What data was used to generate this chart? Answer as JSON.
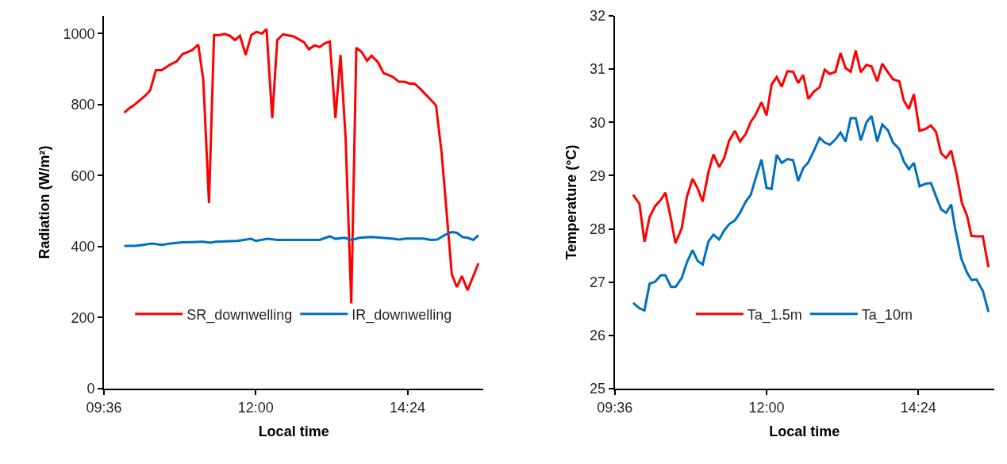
{
  "chart_data": [
    {
      "type": "line",
      "xlabel": "Local time",
      "ylabel": "Radiation (W/m²)",
      "xlim": [
        9.6,
        15.6
      ],
      "xticks": [
        {
          "value": 9.6,
          "label": "09:36"
        },
        {
          "value": 12,
          "label": "12:00"
        },
        {
          "value": 14.4,
          "label": "14:24"
        }
      ],
      "ylim": [
        0,
        1050
      ],
      "yticks": [
        0,
        200,
        400,
        600,
        800,
        1000
      ],
      "legend": "bottom",
      "marker": "none",
      "line_style": "solid",
      "series": [
        {
          "name": "SR_downwelling",
          "color": "#ff0000",
          "x": [
            9.92,
            10.0,
            10.07,
            10.17,
            10.25,
            10.33,
            10.42,
            10.51,
            10.65,
            10.75,
            10.84,
            10.99,
            11.09,
            11.17,
            11.26,
            11.34,
            11.42,
            11.51,
            11.59,
            11.67,
            11.75,
            11.84,
            11.93,
            12.01,
            12.1,
            12.17,
            12.26,
            12.34,
            12.43,
            12.6,
            12.76,
            12.84,
            12.93,
            13.01,
            13.09,
            13.17,
            13.26,
            13.34,
            13.42,
            13.51,
            13.59,
            13.67,
            13.76,
            13.83,
            13.93,
            14.02,
            14.16,
            14.26,
            14.36,
            14.44,
            14.51,
            14.61,
            14.85,
            14.94,
            15.1,
            15.18,
            15.26,
            15.35,
            15.52
          ],
          "values": [
            777,
            790,
            798,
            813,
            825,
            840,
            897,
            897,
            913,
            922,
            942,
            953,
            969,
            870,
            523,
            996,
            996,
            999,
            994,
            982,
            994,
            940,
            996,
            1005,
            1000,
            1013,
            762,
            982,
            998,
            992,
            976,
            956,
            967,
            962,
            973,
            978,
            762,
            940,
            707,
            240,
            960,
            949,
            924,
            938,
            920,
            889,
            879,
            865,
            864,
            859,
            859,
            843,
            798,
            662,
            322,
            286,
            317,
            277,
            353
          ]
        },
        {
          "name": "IR_downwelling",
          "color": "#0070c0",
          "x": [
            9.92,
            10.09,
            10.17,
            10.36,
            10.51,
            10.65,
            10.84,
            11.01,
            11.16,
            11.28,
            11.37,
            11.71,
            11.93,
            12.0,
            12.19,
            12.34,
            13.01,
            13.17,
            13.26,
            13.4,
            13.52,
            13.64,
            13.83,
            13.98,
            14.15,
            14.27,
            14.39,
            14.65,
            14.77,
            14.87,
            15.0,
            15.1,
            15.18,
            15.27,
            15.35,
            15.44,
            15.52
          ],
          "values": [
            402,
            402,
            404,
            409,
            405,
            409,
            412,
            413,
            414,
            411,
            414,
            416,
            422,
            416,
            422,
            419,
            419,
            429,
            422,
            425,
            419,
            425,
            427,
            425,
            423,
            420,
            423,
            423,
            419,
            420,
            434,
            441,
            439,
            427,
            425,
            419,
            432
          ]
        }
      ]
    },
    {
      "type": "line",
      "xlabel": "Local time",
      "ylabel": "Temperature (°C)",
      "xlim": [
        9.6,
        15.6
      ],
      "xticks": [
        {
          "value": 9.6,
          "label": "09:36"
        },
        {
          "value": 12,
          "label": "12:00"
        },
        {
          "value": 14.4,
          "label": "14:24"
        }
      ],
      "ylim": [
        25,
        32
      ],
      "yticks": [
        25,
        26,
        27,
        28,
        29,
        30,
        31,
        32
      ],
      "legend": "bottom",
      "marker": "none",
      "line_style": "solid",
      "series": [
        {
          "name": "Ta_1.5m",
          "color": "#ff0000",
          "x": [
            9.89,
            9.99,
            10.07,
            10.15,
            10.24,
            10.33,
            10.4,
            10.48,
            10.56,
            10.66,
            10.74,
            10.83,
            10.91,
            10.99,
            11.08,
            11.16,
            11.25,
            11.33,
            11.41,
            11.5,
            11.58,
            11.67,
            11.75,
            11.82,
            11.92,
            12.0,
            12.08,
            12.16,
            12.24,
            12.33,
            12.42,
            12.5,
            12.58,
            12.66,
            12.75,
            12.84,
            12.92,
            13.0,
            13.09,
            13.17,
            13.25,
            13.33,
            13.41,
            13.49,
            13.58,
            13.66,
            13.75,
            13.83,
            13.92,
            14.0,
            14.1,
            14.17,
            14.25,
            14.33,
            14.42,
            14.52,
            14.6,
            14.68,
            14.76,
            14.84,
            14.92,
            15.01,
            15.09,
            15.17,
            15.24,
            15.32,
            15.42,
            15.51
          ],
          "values": [
            28.64,
            28.47,
            27.76,
            28.22,
            28.43,
            28.55,
            28.68,
            28.24,
            27.73,
            28.02,
            28.6,
            28.94,
            28.76,
            28.51,
            29.06,
            29.4,
            29.16,
            29.33,
            29.66,
            29.84,
            29.64,
            29.78,
            30.01,
            30.13,
            30.38,
            30.13,
            30.71,
            30.85,
            30.67,
            30.96,
            30.95,
            30.74,
            30.89,
            30.44,
            30.58,
            30.66,
            30.99,
            30.91,
            30.95,
            31.3,
            31.02,
            30.95,
            31.35,
            30.94,
            31.08,
            31.05,
            30.77,
            31.1,
            30.94,
            30.81,
            30.77,
            30.41,
            30.25,
            30.53,
            29.84,
            29.88,
            29.94,
            29.82,
            29.42,
            29.33,
            29.47,
            29.0,
            28.48,
            28.25,
            27.87,
            27.86,
            27.86,
            27.28
          ]
        },
        {
          "name": "Ta_10m",
          "color": "#0070c0",
          "x": [
            9.89,
            9.99,
            10.07,
            10.15,
            10.24,
            10.33,
            10.4,
            10.49,
            10.56,
            10.66,
            10.74,
            10.83,
            10.91,
            10.99,
            11.08,
            11.16,
            11.25,
            11.33,
            11.41,
            11.5,
            11.58,
            11.67,
            11.75,
            11.83,
            11.92,
            12.0,
            12.08,
            12.16,
            12.24,
            12.33,
            12.42,
            12.5,
            12.58,
            12.66,
            12.75,
            12.84,
            12.92,
            13.0,
            13.09,
            13.17,
            13.25,
            13.33,
            13.41,
            13.49,
            13.58,
            13.66,
            13.75,
            13.83,
            13.92,
            14.0,
            14.1,
            14.17,
            14.25,
            14.33,
            14.42,
            14.52,
            14.6,
            14.68,
            14.76,
            14.84,
            14.92,
            14.98,
            15.08,
            15.17,
            15.24,
            15.32,
            15.42,
            15.51
          ],
          "values": [
            26.61,
            26.51,
            26.47,
            26.97,
            27.01,
            27.13,
            27.13,
            26.91,
            26.91,
            27.08,
            27.37,
            27.6,
            27.4,
            27.33,
            27.76,
            27.89,
            27.8,
            27.97,
            28.09,
            28.16,
            28.3,
            28.51,
            28.64,
            28.96,
            29.3,
            28.77,
            28.75,
            29.39,
            29.24,
            29.31,
            29.29,
            28.9,
            29.14,
            29.25,
            29.47,
            29.71,
            29.62,
            29.58,
            29.68,
            29.81,
            29.64,
            30.08,
            30.08,
            29.66,
            30.0,
            30.12,
            29.64,
            29.96,
            29.85,
            29.62,
            29.5,
            29.27,
            29.12,
            29.24,
            28.8,
            28.85,
            28.86,
            28.61,
            28.37,
            28.3,
            28.46,
            28.02,
            27.44,
            27.18,
            27.04,
            27.05,
            26.84,
            26.44
          ]
        }
      ]
    }
  ]
}
